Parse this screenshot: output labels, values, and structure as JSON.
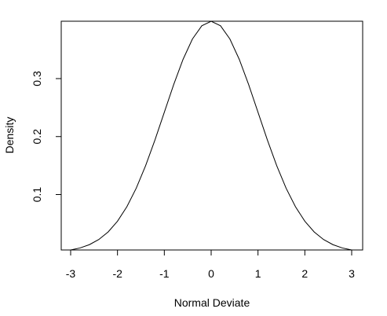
{
  "chart_data": {
    "type": "line",
    "xlabel": "Normal Deviate",
    "ylabel": "Density",
    "xlim": [
      -3,
      3
    ],
    "ylim": [
      0.00443,
      0.39894
    ],
    "x_ticks": [
      -3,
      -2,
      -1,
      0,
      1,
      2,
      3
    ],
    "x_tick_labels": [
      "-3",
      "-2",
      "-1",
      "0",
      "1",
      "2",
      "3"
    ],
    "y_ticks": [
      0.1,
      0.2,
      0.3
    ],
    "y_tick_labels": [
      "0.1",
      "0.2",
      "0.3"
    ],
    "grid": false,
    "series": [
      {
        "x": [
          -3.0,
          -2.8,
          -2.6,
          -2.4,
          -2.2,
          -2.0,
          -1.8,
          -1.6,
          -1.4,
          -1.2,
          -1.0,
          -0.8,
          -0.6,
          -0.4,
          -0.2,
          0.0,
          0.2,
          0.4,
          0.6,
          0.8,
          1.0,
          1.2,
          1.4,
          1.6,
          1.8,
          2.0,
          2.2,
          2.4,
          2.6,
          2.8,
          3.0
        ],
        "y": [
          0.00443,
          0.00792,
          0.01358,
          0.02239,
          0.03547,
          0.05399,
          0.07895,
          0.11092,
          0.14973,
          0.19419,
          0.24197,
          0.28969,
          0.33322,
          0.36827,
          0.39104,
          0.39894,
          0.39104,
          0.36827,
          0.33322,
          0.28969,
          0.24197,
          0.19419,
          0.14973,
          0.11092,
          0.07895,
          0.05399,
          0.03547,
          0.02239,
          0.01358,
          0.00792,
          0.00443
        ]
      }
    ]
  }
}
